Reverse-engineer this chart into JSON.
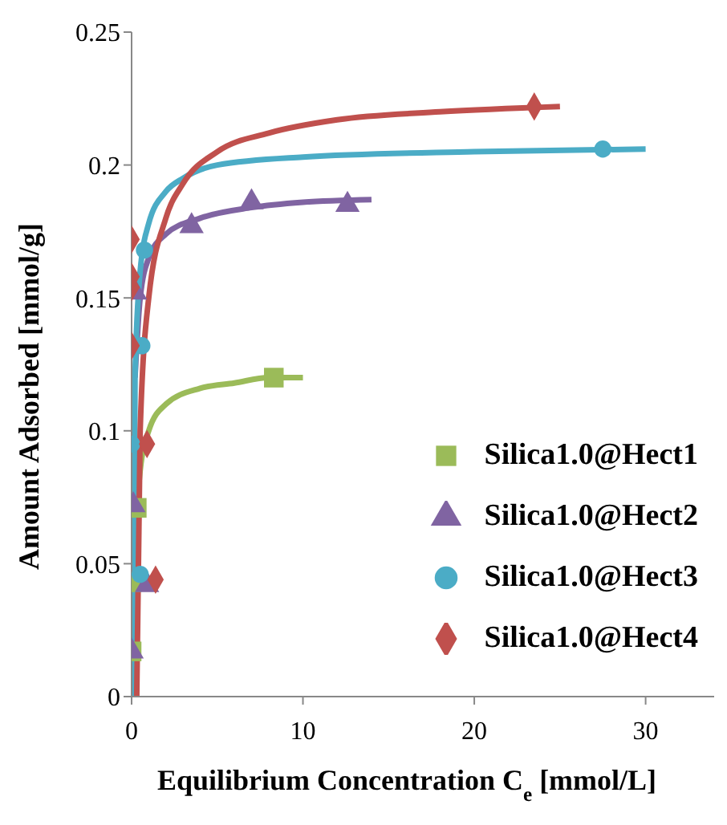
{
  "chart_data": {
    "type": "scatter",
    "xlabel": "Equilibrium Concentration C$_{e}$ [mmol/L]",
    "ylabel": "Amount Adsorbed [mmol/g]",
    "xlim": [
      0,
      34
    ],
    "xticks": [
      0,
      10,
      20,
      30
    ],
    "ylim": [
      0,
      0.25
    ],
    "yticks": [
      0,
      0.05,
      0.1,
      0.15,
      0.2,
      0.25
    ],
    "grid": false,
    "legend": "right",
    "series": [
      {
        "name": "Silica1.0@Hect1",
        "marker": "square",
        "color": "#9bbb59",
        "x": [
          0,
          0,
          0.3,
          8.3
        ],
        "values": [
          0.017,
          0.043,
          0.071,
          0.12
        ]
      },
      {
        "name": "Silica1.0@Hect2",
        "marker": "triangle",
        "color": "#8064a2",
        "x": [
          0,
          0.9,
          0.1,
          0.2,
          3.5,
          7,
          12.6
        ],
        "values": [
          0.017,
          0.042,
          0.072,
          0.152,
          0.177,
          0.186,
          0.185
        ]
      },
      {
        "name": "Silica1.0@Hect3",
        "marker": "circle",
        "color": "#4bacc6",
        "x": [
          0.5,
          0,
          0.6,
          0.75,
          27.5
        ],
        "values": [
          0.046,
          0.095,
          0.132,
          0.168,
          0.206
        ]
      },
      {
        "name": "Silica1.0@Hect4",
        "marker": "diamond",
        "color": "#c0504d",
        "x": [
          1.4,
          0.9,
          0,
          0,
          0,
          0,
          23.5
        ],
        "values": [
          0.044,
          0.095,
          0.132,
          0.154,
          0.158,
          0.172,
          0.222
        ]
      },
      {
        "type": "line",
        "color": "#9bbb59",
        "x": [
          0.3,
          0.5,
          1,
          2,
          4,
          6,
          8,
          10
        ],
        "values": [
          0.07,
          0.085,
          0.1,
          0.11,
          0.116,
          0.118,
          0.12,
          0.12
        ]
      },
      {
        "type": "line",
        "color": "#8064a2",
        "x": [
          0.2,
          0.5,
          1,
          2,
          4,
          7,
          10,
          14
        ],
        "values": [
          0.12,
          0.15,
          0.165,
          0.174,
          0.18,
          0.184,
          0.186,
          0.187
        ]
      },
      {
        "type": "line",
        "color": "#4bacc6",
        "x": [
          0.1,
          0.2,
          0.5,
          1,
          2,
          3,
          5,
          10,
          20,
          30
        ],
        "values": [
          0,
          0.12,
          0.16,
          0.178,
          0.19,
          0.195,
          0.2,
          0.203,
          0.205,
          0.206
        ]
      },
      {
        "type": "line",
        "color": "#c0504d",
        "x": [
          0.3,
          0.5,
          1,
          2,
          3,
          5,
          8,
          12,
          18,
          25
        ],
        "values": [
          0,
          0.1,
          0.15,
          0.18,
          0.193,
          0.205,
          0.212,
          0.217,
          0.22,
          0.222
        ]
      }
    ]
  }
}
